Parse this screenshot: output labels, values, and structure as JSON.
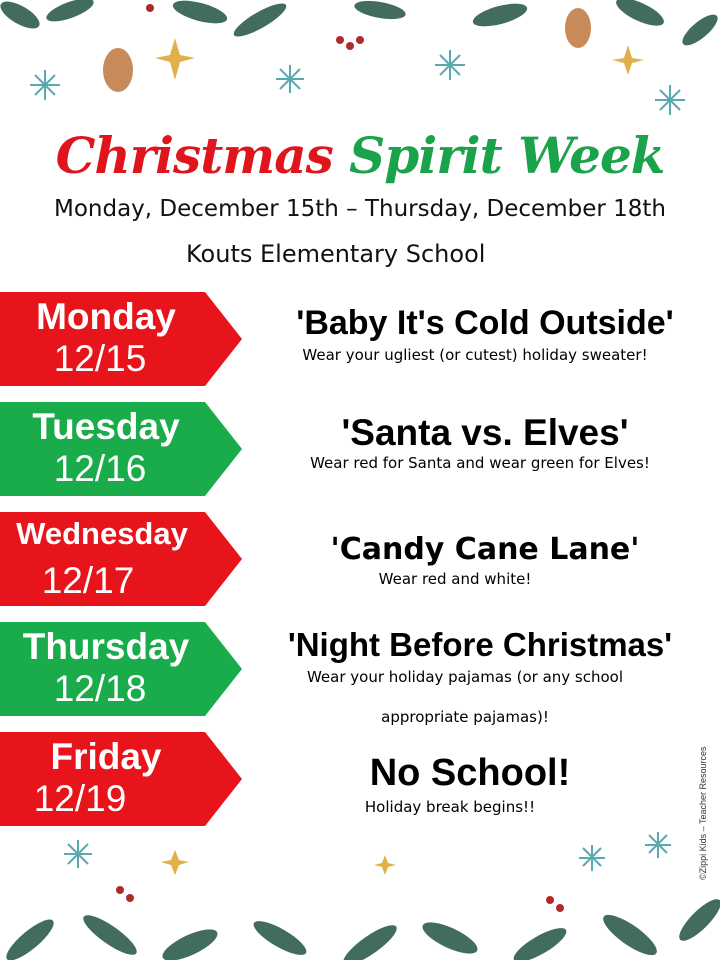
{
  "header": {
    "title_part1": "Christmas",
    "title_part2": "Spirit Week",
    "dates": "Monday, December 15th – Thursday, December 18th",
    "school": "Kouts Elementary School"
  },
  "days": [
    {
      "day": "Monday",
      "date": "12/15",
      "theme": "'Baby It's Cold Outside'",
      "desc": "Wear your ugliest (or cutest) holiday sweater!",
      "color": "#e8141c"
    },
    {
      "day": "Tuesday",
      "date": "12/16",
      "theme": "'Santa vs. Elves'",
      "desc": "Wear red for Santa and wear green for Elves!",
      "color": "#1aab4b"
    },
    {
      "day": "Wednesday",
      "date": "12/17",
      "theme": "'Candy Cane Lane'",
      "desc": "Wear red and white!",
      "color": "#e8141c"
    },
    {
      "day": "Thursday",
      "date": "12/18",
      "theme": "'Night Before Christmas'",
      "desc": "Wear your holiday pajamas (or any school",
      "desc2": "appropriate pajamas)!",
      "color": "#1aab4b"
    },
    {
      "day": "Friday",
      "date": "12/19",
      "theme": "No School!",
      "desc": "Holiday break begins!!",
      "color": "#e8141c"
    }
  ],
  "credit": "©Zippi Kids – Teacher Resources",
  "colors": {
    "red": "#e0141c",
    "green": "#1aa34a",
    "foliage": "#2f5d50"
  }
}
